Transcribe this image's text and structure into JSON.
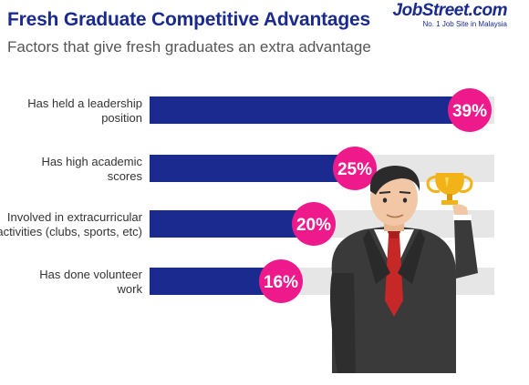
{
  "header": {
    "title": "Fresh Graduate Competitive Advantages",
    "subtitle": "Factors that give fresh graduates an extra advantage"
  },
  "logo": {
    "name": "JobStreet.com",
    "tagline": "No. 1 Job Site in Malaysia"
  },
  "colors": {
    "title": "#1b2a8f",
    "bar": "#1b2a8f",
    "track": "#e6e6e6",
    "badge": "#ee1a8c"
  },
  "illustration": "businessman-holding-trophy",
  "chart_data": {
    "type": "bar",
    "orientation": "horizontal",
    "categories": [
      [
        "Has held a leadership",
        "position"
      ],
      [
        "Has high academic",
        "scores"
      ],
      [
        "Involved in extracurricular",
        "activities (clubs, sports, etc)"
      ],
      [
        "Has done volunteer",
        "work"
      ]
    ],
    "values": [
      39,
      25,
      20,
      16
    ],
    "value_labels": [
      "39%",
      "25%",
      "20%",
      "16%"
    ],
    "unit": "%",
    "xlim": [
      0,
      42
    ],
    "grid": false,
    "legend": "none"
  }
}
